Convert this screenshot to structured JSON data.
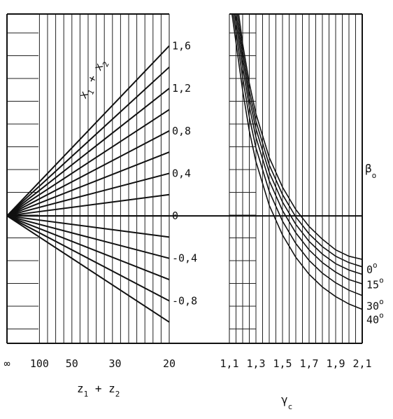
{
  "chart_data": [
    {
      "type": "line",
      "title": "",
      "xlabel_main": "z",
      "xlabel_sub1": "1",
      "xlabel_plus": " + z",
      "xlabel_sub2": "2",
      "ylabel_main": "x",
      "ylabel_sub1": "1",
      "ylabel_plus": " + x",
      "ylabel_sub2": "2",
      "x_ticks": [
        "∞",
        "100",
        "50",
        "30",
        "20"
      ],
      "x_tick_values": [
        0,
        0.01,
        0.02,
        0.0333,
        0.05
      ],
      "x_scale": "reciprocal",
      "y_label_ticks": [
        "1,6",
        "1,2",
        "0,8",
        "0,4",
        "0",
        "-0,4",
        "-0,8"
      ],
      "y_label_values": [
        1.6,
        1.2,
        0.8,
        0.4,
        0,
        -0.4,
        -0.8
      ],
      "ylim": [
        -1.2,
        1.9
      ],
      "line_family_values": [
        1.6,
        1.4,
        1.2,
        1.0,
        0.8,
        0.6,
        0.4,
        0.2,
        0,
        -0.2,
        -0.4,
        -0.6,
        -0.8,
        -1.0
      ],
      "line_origin": {
        "x": 0,
        "y": 0
      },
      "grid": true
    },
    {
      "type": "line",
      "title": "",
      "xlabel_main": "γ",
      "xlabel_sub": "c",
      "legend_title_main": "β",
      "legend_title_sub": "o",
      "x_ticks": [
        "1,1",
        "1,3",
        "1,5",
        "1,7",
        "1,9",
        "2,1"
      ],
      "x_tick_values": [
        1.1,
        1.3,
        1.5,
        1.7,
        1.9,
        2.1
      ],
      "xlim": [
        1.1,
        2.1
      ],
      "ylim": [
        -1.2,
        1.9
      ],
      "series": [
        {
          "name": "0",
          "x": [
            1.17,
            1.2,
            1.25,
            1.3,
            1.4,
            1.5,
            1.6,
            1.7,
            1.8,
            1.9,
            2.0,
            2.1
          ],
          "y": [
            1.9,
            1.62,
            1.25,
            0.96,
            0.55,
            0.27,
            0.06,
            -0.1,
            -0.22,
            -0.32,
            -0.38,
            -0.41
          ]
        },
        {
          "name": "",
          "x": [
            1.16,
            1.2,
            1.25,
            1.3,
            1.4,
            1.5,
            1.6,
            1.7,
            1.8,
            1.9,
            2.0,
            2.1
          ],
          "y": [
            1.9,
            1.55,
            1.18,
            0.89,
            0.48,
            0.2,
            -0.01,
            -0.17,
            -0.29,
            -0.38,
            -0.44,
            -0.48
          ]
        },
        {
          "name": "15",
          "x": [
            1.15,
            1.2,
            1.25,
            1.3,
            1.4,
            1.5,
            1.6,
            1.7,
            1.8,
            1.9,
            2.0,
            2.1
          ],
          "y": [
            1.9,
            1.48,
            1.11,
            0.82,
            0.41,
            0.13,
            -0.08,
            -0.24,
            -0.36,
            -0.45,
            -0.51,
            -0.55
          ]
        },
        {
          "name": "",
          "x": [
            1.14,
            1.2,
            1.25,
            1.3,
            1.4,
            1.5,
            1.6,
            1.7,
            1.8,
            1.9,
            2.0,
            2.1
          ],
          "y": [
            1.9,
            1.4,
            1.03,
            0.74,
            0.33,
            0.05,
            -0.16,
            -0.32,
            -0.44,
            -0.53,
            -0.6,
            -0.64
          ]
        },
        {
          "name": "30",
          "x": [
            1.13,
            1.2,
            1.25,
            1.3,
            1.4,
            1.5,
            1.6,
            1.7,
            1.8,
            1.9,
            2.0,
            2.1
          ],
          "y": [
            1.9,
            1.3,
            0.93,
            0.64,
            0.23,
            -0.05,
            -0.26,
            -0.42,
            -0.54,
            -0.63,
            -0.7,
            -0.75
          ]
        },
        {
          "name": "40",
          "x": [
            1.12,
            1.2,
            1.25,
            1.3,
            1.4,
            1.5,
            1.6,
            1.7,
            1.8,
            1.9,
            2.0,
            2.1
          ],
          "y": [
            1.9,
            1.18,
            0.8,
            0.51,
            0.1,
            -0.18,
            -0.39,
            -0.55,
            -0.67,
            -0.76,
            -0.83,
            -0.88
          ]
        }
      ],
      "degree_symbol": "o",
      "grid": true
    }
  ]
}
